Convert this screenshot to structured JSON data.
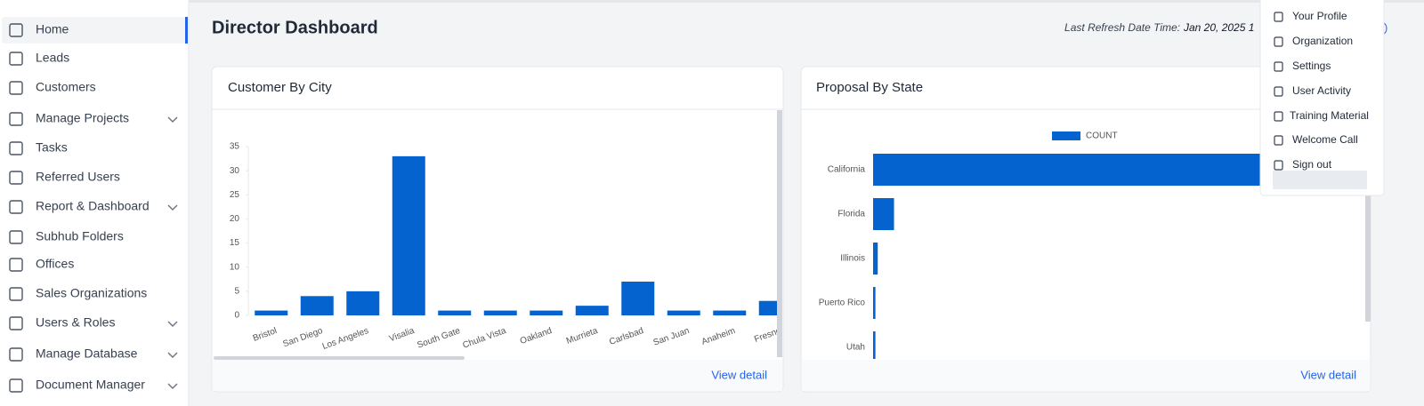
{
  "sidebar": {
    "items": [
      {
        "label": "Home",
        "active": true
      },
      {
        "label": "Leads"
      },
      {
        "label": "Customers"
      },
      {
        "label": "Manage Projects",
        "submenu": true
      },
      {
        "label": "Tasks"
      },
      {
        "label": "Referred Users"
      },
      {
        "label": "Report & Dashboard",
        "submenu": true
      },
      {
        "label": "Subhub Folders"
      },
      {
        "label": "Offices"
      },
      {
        "label": "Sales Organizations"
      },
      {
        "label": "Users & Roles",
        "submenu": true
      },
      {
        "label": "Manage Database",
        "submenu": true
      },
      {
        "label": "Document Manager",
        "submenu": true
      }
    ]
  },
  "header": {
    "title": "Director Dashboard",
    "refresh_label": "Last Refresh Date Time:",
    "refresh_value": "Jan 20, 2025 1"
  },
  "menu": {
    "items": [
      "Your Profile",
      "Organization",
      "Settings",
      "User Activity",
      "Training Material",
      "Welcome Call",
      "Sign out"
    ]
  },
  "chart_data": [
    {
      "type": "bar",
      "title": "Customer By City",
      "link": "View detail",
      "color": "#0563cf",
      "categories": [
        "Bristol",
        "San Diego",
        "Los Angeles",
        "Visalia",
        "South Gate",
        "Chula Vista",
        "Oakland",
        "Murrieta",
        "Carlsbad",
        "San Juan",
        "Anaheim",
        "Fresno"
      ],
      "values": [
        1,
        4,
        5,
        33,
        1,
        1,
        1,
        2,
        7,
        1,
        1,
        3
      ],
      "ylim": [
        0,
        35
      ],
      "yticks": [
        0,
        5,
        10,
        15,
        20,
        25,
        30,
        35
      ]
    },
    {
      "type": "hbar",
      "title": "Proposal By State",
      "link": "View detail",
      "color": "#0563cf",
      "series": [
        {
          "name": "COUNT",
          "color": "#0563cf",
          "values": [
            200,
            9,
            2,
            1,
            1
          ]
        }
      ],
      "categories": [
        "California",
        "Florida",
        "Illinois",
        "Puerto Rico",
        "Utah"
      ],
      "xlim": [
        0,
        210
      ]
    }
  ]
}
